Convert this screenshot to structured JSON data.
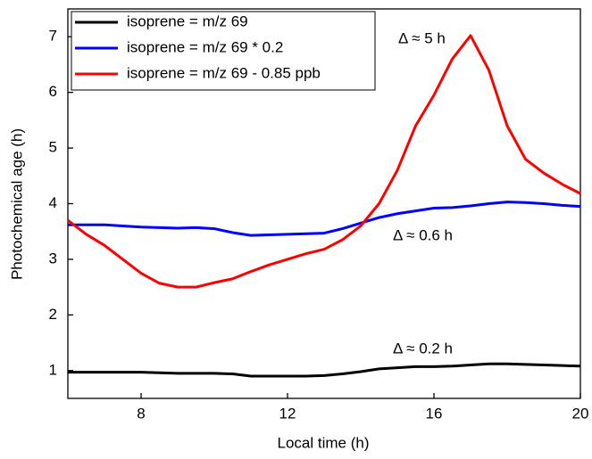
{
  "chart_data": {
    "type": "line",
    "xlabel": "Local time (h)",
    "ylabel": "Photochemical age (h)",
    "x": [
      6,
      6.5,
      7,
      7.5,
      8,
      8.5,
      9,
      9.5,
      10,
      10.5,
      11,
      11.5,
      12,
      12.5,
      13,
      13.5,
      14,
      14.5,
      15,
      15.5,
      16,
      16.5,
      17,
      17.5,
      18,
      18.5,
      19,
      19.5,
      20
    ],
    "series": [
      {
        "name": "isoprene = m/z 69",
        "color": "#000000",
        "values": [
          0.97,
          0.97,
          0.97,
          0.97,
          0.97,
          0.96,
          0.95,
          0.95,
          0.95,
          0.94,
          0.9,
          0.9,
          0.9,
          0.9,
          0.91,
          0.94,
          0.98,
          1.03,
          1.05,
          1.07,
          1.07,
          1.08,
          1.1,
          1.12,
          1.12,
          1.11,
          1.1,
          1.09,
          1.08
        ]
      },
      {
        "name": "isoprene = m/z 69 * 0.2",
        "color": "#0000ff",
        "values": [
          3.62,
          3.62,
          3.62,
          3.6,
          3.58,
          3.57,
          3.56,
          3.57,
          3.55,
          3.48,
          3.43,
          3.44,
          3.45,
          3.46,
          3.47,
          3.55,
          3.65,
          3.75,
          3.82,
          3.87,
          3.92,
          3.93,
          3.96,
          4.0,
          4.03,
          4.02,
          4.0,
          3.97,
          3.95
        ]
      },
      {
        "name": "isoprene = m/z 69 - 0.85 ppb",
        "color": "#ff0000",
        "values": [
          3.7,
          3.45,
          3.25,
          3.0,
          2.75,
          2.57,
          2.5,
          2.5,
          2.58,
          2.65,
          2.78,
          2.9,
          3.0,
          3.1,
          3.18,
          3.35,
          3.6,
          4.0,
          4.6,
          5.4,
          5.95,
          6.6,
          7.02,
          6.4,
          5.4,
          4.8,
          4.55,
          4.35,
          4.18
        ]
      }
    ],
    "annotations": [
      {
        "text": "Δ ≈ 5 h",
        "color": "#ff0000"
      },
      {
        "text": "Δ ≈ 0.6 h",
        "color": "#0000ff"
      },
      {
        "text": "Δ ≈ 0.2 h",
        "color": "#000000"
      }
    ],
    "xlim": [
      6,
      20
    ],
    "xticks": [
      8,
      12,
      16,
      20
    ],
    "ylim": [
      0.5,
      7.5
    ],
    "yticks": [
      1,
      2,
      3,
      4,
      5,
      6,
      7
    ],
    "legend": "upper left"
  }
}
